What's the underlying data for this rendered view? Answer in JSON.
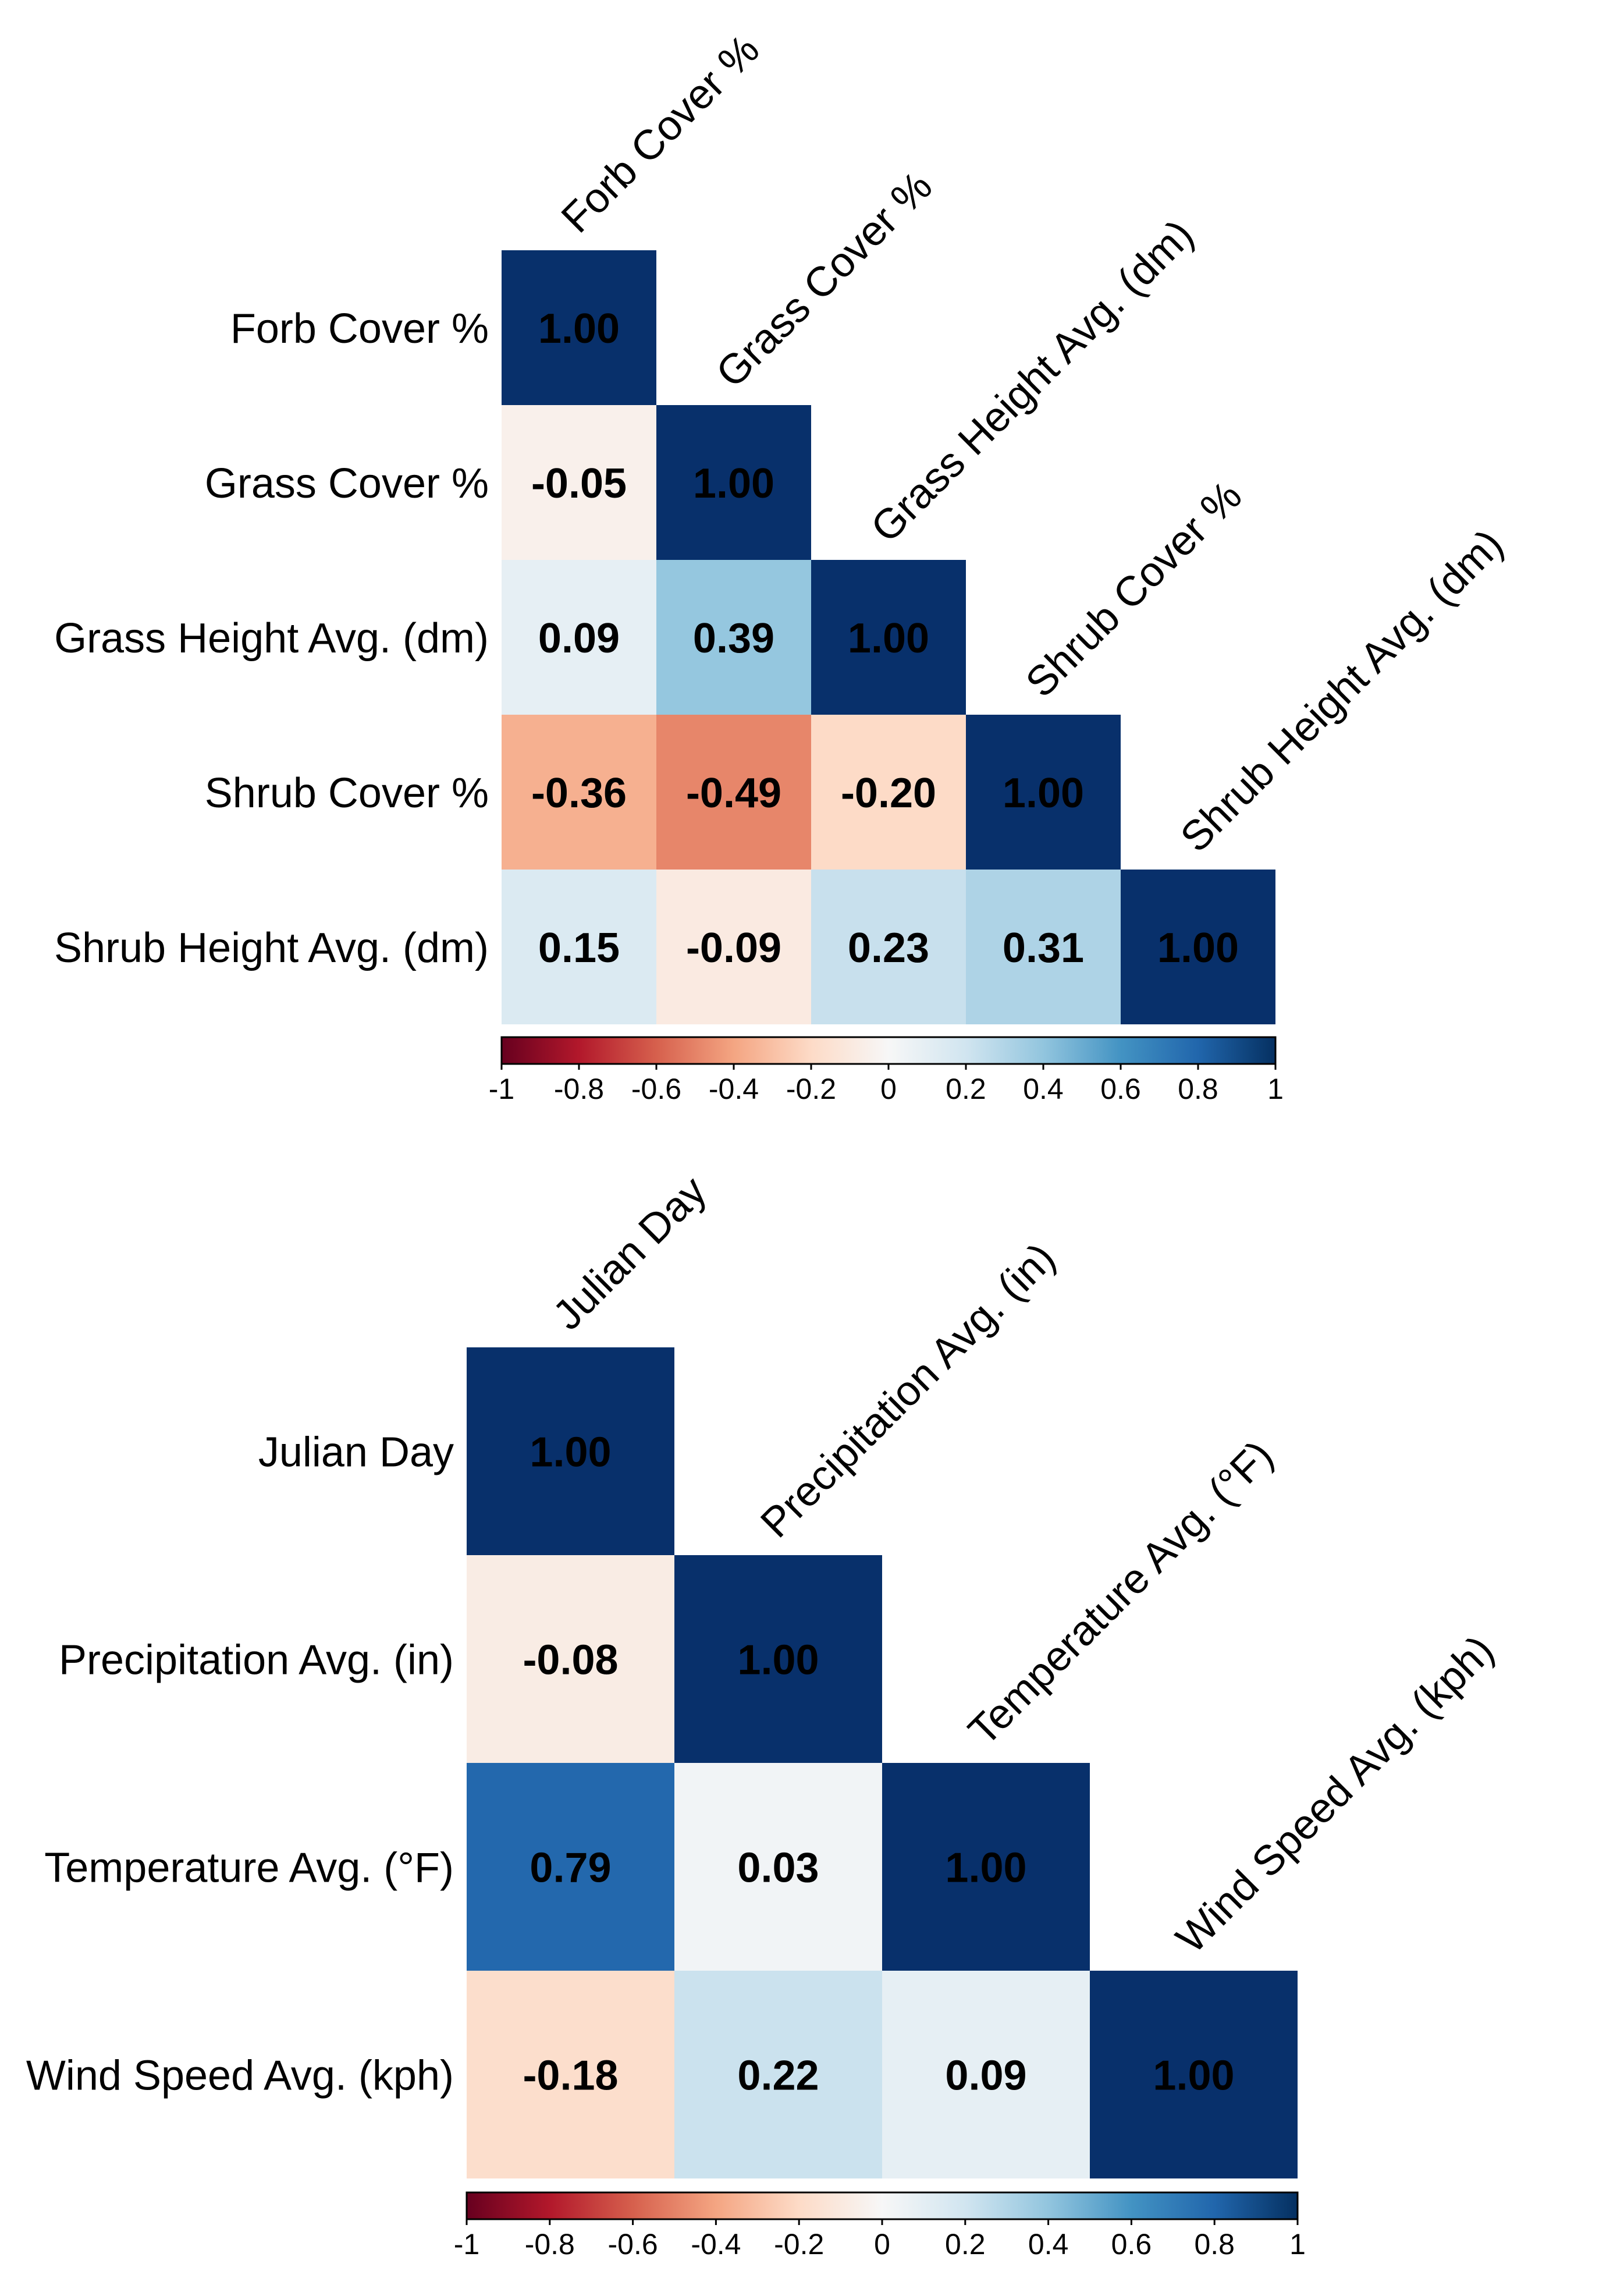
{
  "chart_data": [
    {
      "type": "heatmap",
      "variables": [
        "Forb Cover %",
        "Grass Cover %",
        "Grass Height Avg. (dm)",
        "Shrub Cover %",
        "Shrub Height Avg. (dm)"
      ],
      "matrix": [
        [
          "1.00"
        ],
        [
          "-0.05",
          "1.00"
        ],
        [
          "0.09",
          "0.39",
          "1.00"
        ],
        [
          "-0.36",
          "-0.49",
          "-0.20",
          "1.00"
        ],
        [
          "0.15",
          "-0.09",
          "0.23",
          "0.31",
          "1.00"
        ]
      ],
      "colorbar": {
        "range": [
          -1,
          1
        ],
        "ticks": [
          "-1",
          "-0.8",
          "-0.6",
          "-0.4",
          "-0.2",
          "0",
          "0.2",
          "0.4",
          "0.6",
          "0.8",
          "1"
        ]
      }
    },
    {
      "type": "heatmap",
      "variables": [
        "Julian Day",
        "Precipitation Avg. (in)",
        "Temperature Avg. (°F)",
        "Wind Speed Avg. (kph)"
      ],
      "matrix": [
        [
          "1.00"
        ],
        [
          "-0.08",
          "1.00"
        ],
        [
          "0.79",
          "0.03",
          "1.00"
        ],
        [
          "-0.18",
          "0.22",
          "0.09",
          "1.00"
        ]
      ],
      "colorbar": {
        "range": [
          -1,
          1
        ],
        "ticks": [
          "-1",
          "-0.8",
          "-0.6",
          "-0.4",
          "-0.2",
          "0",
          "0.2",
          "0.4",
          "0.6",
          "0.8",
          "1"
        ]
      }
    }
  ],
  "colors": {
    "scale": [
      "#67001f",
      "#b2182b",
      "#d6604d",
      "#f4a582",
      "#fddbc7",
      "#f7f7f7",
      "#d1e5f0",
      "#92c5de",
      "#4393c3",
      "#2166ac",
      "#053061"
    ],
    "diagonal_fill": "#08306b",
    "text": "#000000"
  }
}
